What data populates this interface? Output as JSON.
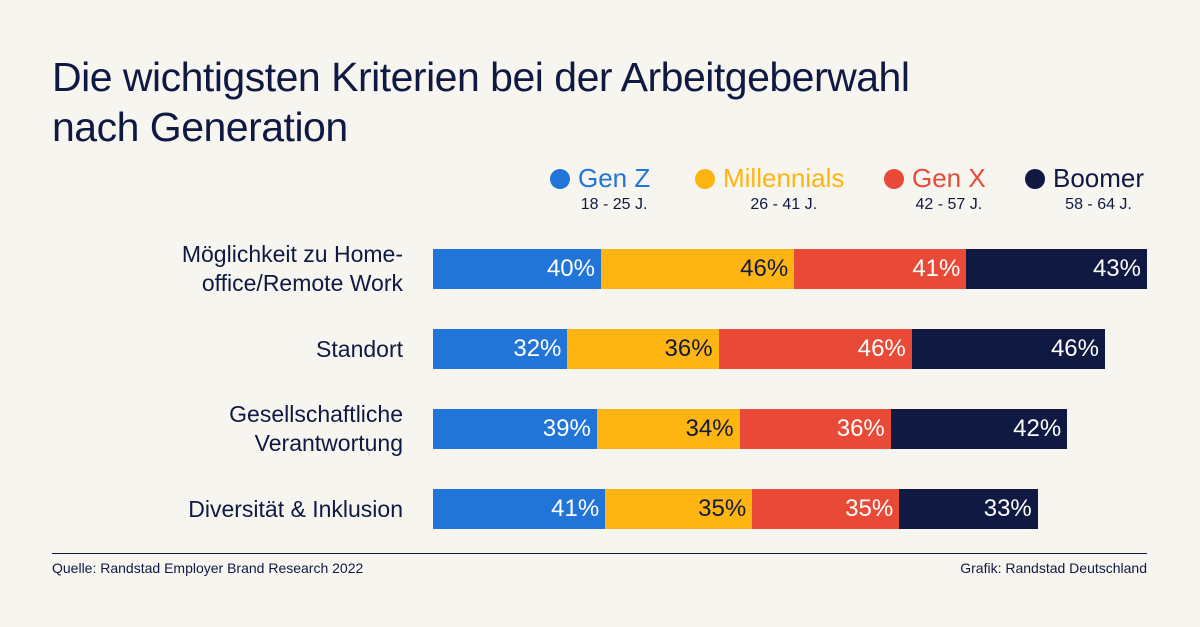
{
  "title_lines": [
    "Die wichtigsten Kriterien bei der Arbeitgeberwahl",
    "nach Generation"
  ],
  "chart_data": {
    "type": "bar",
    "orientation": "horizontal",
    "stacked": true,
    "title": "Die wichtigsten Kriterien bei der Arbeitgeberwahl nach Generation",
    "categories": [
      "Möglichkeit zu Home-office/Remote Work",
      "Standort",
      "Gesellschaftliche Verantwortung",
      "Diversität & Inklusion"
    ],
    "category_lines": [
      [
        "Möglichkeit zu Home-",
        "office/Remote Work"
      ],
      [
        "Standort"
      ],
      [
        "Gesellschaftliche",
        "Verantwortung"
      ],
      [
        "Diversität & Inklusion"
      ]
    ],
    "series": [
      {
        "name": "Gen Z",
        "age": "18 - 25 J.",
        "color": "#2175d9",
        "label_color": "#ffffff",
        "values": [
          40,
          32,
          39,
          41
        ]
      },
      {
        "name": "Millennials",
        "age": "26 - 41 J.",
        "color": "#ffb511",
        "label_color": "#0f1941",
        "values": [
          46,
          36,
          34,
          35
        ]
      },
      {
        "name": "Gen X",
        "age": "42 - 57 J.",
        "color": "#e84a37",
        "label_color": "#ffffff",
        "values": [
          41,
          46,
          36,
          35
        ]
      },
      {
        "name": "Boomer",
        "age": "58 - 64 J.",
        "color": "#0f1941",
        "label_color": "#ffffff",
        "values": [
          43,
          46,
          42,
          33
        ]
      }
    ],
    "value_suffix": "%",
    "legend_position": "top-right",
    "grid": false
  },
  "footer": {
    "source": "Quelle: Randstad Employer Brand Research 2022",
    "credit": "Grafik: Randstad Deutschland"
  },
  "colors": {
    "background": "#f7f5f0",
    "text": "#0f1941"
  }
}
